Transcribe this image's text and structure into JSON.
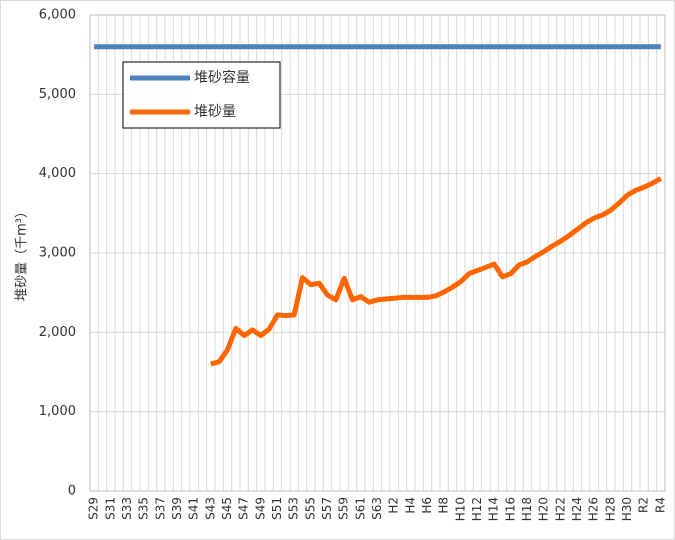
{
  "chart_data": {
    "type": "line",
    "ylabel": "堆砂量（千m³）",
    "categories": [
      "S29",
      null,
      "S31",
      null,
      "S33",
      null,
      "S35",
      null,
      "S37",
      null,
      "S39",
      null,
      "S41",
      null,
      "S43",
      null,
      "S45",
      null,
      "S47",
      null,
      "S49",
      null,
      "S51",
      null,
      "S53",
      null,
      "S55",
      null,
      "S57",
      null,
      "S59",
      null,
      "S61",
      null,
      "S63",
      null,
      "H2",
      null,
      "H4",
      null,
      "H6",
      null,
      "H8",
      null,
      "H10",
      null,
      "H12",
      null,
      "H14",
      null,
      "H16",
      null,
      "H18",
      null,
      "H20",
      null,
      "H22",
      null,
      "H24",
      null,
      "H26",
      null,
      "H28",
      null,
      "H30",
      null,
      "R2",
      null,
      "R4"
    ],
    "series": [
      {
        "name": "堆砂容量",
        "color": "#4f81bd",
        "values": [
          5600,
          5600,
          5600,
          5600,
          5600,
          5600,
          5600,
          5600,
          5600,
          5600,
          5600,
          5600,
          5600,
          5600,
          5600,
          5600,
          5600,
          5600,
          5600,
          5600,
          5600,
          5600,
          5600,
          5600,
          5600,
          5600,
          5600,
          5600,
          5600,
          5600,
          5600,
          5600,
          5600,
          5600,
          5600,
          5600,
          5600,
          5600,
          5600,
          5600,
          5600,
          5600,
          5600,
          5600,
          5600,
          5600,
          5600,
          5600,
          5600,
          5600,
          5600,
          5600,
          5600,
          5600,
          5600,
          5600,
          5600,
          5600,
          5600,
          5600,
          5600,
          5600,
          5600,
          5600,
          5600,
          5600,
          5600,
          5600,
          5600
        ]
      },
      {
        "name": "堆砂量",
        "color": "#ff6600",
        "values": [
          null,
          null,
          null,
          null,
          null,
          null,
          null,
          null,
          null,
          null,
          null,
          null,
          null,
          null,
          1600,
          1630,
          1780,
          2050,
          1960,
          2030,
          1960,
          2040,
          2220,
          2210,
          2220,
          2690,
          2600,
          2620,
          2470,
          2410,
          2680,
          2410,
          2450,
          2380,
          2410,
          2420,
          2430,
          2440,
          2440,
          2440,
          2440,
          2460,
          2510,
          2570,
          2640,
          2740,
          2780,
          2820,
          2860,
          2700,
          2740,
          2850,
          2890,
          2960,
          3020,
          3090,
          3150,
          3220,
          3300,
          3380,
          3440,
          3480,
          3540,
          3630,
          3730,
          3790,
          3830,
          3880,
          3940
        ]
      }
    ],
    "ylim": [
      0,
      6000
    ],
    "yticks": [
      0,
      {
        "value": 1000,
        "label": "1,000"
      },
      {
        "value": 2000,
        "label": "2,000"
      },
      {
        "value": 3000,
        "label": "3,000"
      },
      {
        "value": 4000,
        "label": "4,000"
      },
      {
        "value": 5000,
        "label": "5,000"
      },
      {
        "value": 6000,
        "label": "6,000"
      }
    ],
    "grid": true,
    "legend": "upper left"
  }
}
